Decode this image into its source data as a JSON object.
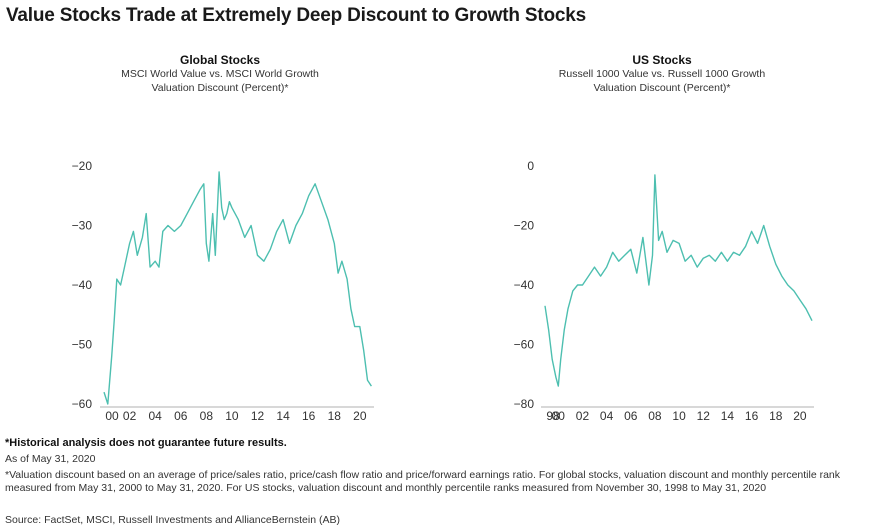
{
  "title": "Value Stocks Trade at Extremely Deep Discount to Growth Stocks",
  "series_color": "#4dbfb0",
  "charts": {
    "global": {
      "title": "Global Stocks",
      "subtitle1": "MSCI World Value vs. MSCI World Growth",
      "subtitle2": "Valuation Discount (Percent)*"
    },
    "us": {
      "title": "US Stocks",
      "subtitle1": "Russell 1000 Value vs. Russell 1000 Growth",
      "subtitle2": "Valuation Discount (Percent)*"
    }
  },
  "chart_data": [
    {
      "type": "line",
      "title": "Global Stocks",
      "ylabel": "Valuation Discount (Percent)*",
      "ylim": [
        -60,
        -20
      ],
      "yticks": [
        -20,
        -30,
        -40,
        -50,
        -60
      ],
      "xlim": [
        2000,
        2020.95
      ],
      "xticks": [
        2000,
        2002,
        2004,
        2006,
        2008,
        2010,
        2012,
        2014,
        2016,
        2018,
        2020
      ],
      "xtick_labels": [
        "00",
        "02",
        "04",
        "06",
        "08",
        "10",
        "12",
        "14",
        "16",
        "18",
        "20"
      ],
      "x": [
        2000.0,
        2000.3,
        2000.6,
        2000.8,
        2001.0,
        2001.3,
        2001.6,
        2002.0,
        2002.3,
        2002.6,
        2003.0,
        2003.3,
        2003.6,
        2004.0,
        2004.3,
        2004.6,
        2005.0,
        2005.5,
        2006.0,
        2006.5,
        2007.0,
        2007.5,
        2007.8,
        2008.0,
        2008.2,
        2008.5,
        2008.7,
        2009.0,
        2009.2,
        2009.4,
        2009.6,
        2009.8,
        2010.0,
        2010.5,
        2011.0,
        2011.5,
        2012.0,
        2012.5,
        2013.0,
        2013.5,
        2014.0,
        2014.5,
        2015.0,
        2015.5,
        2016.0,
        2016.5,
        2017.0,
        2017.5,
        2018.0,
        2018.3,
        2018.6,
        2019.0,
        2019.3,
        2019.6,
        2020.0,
        2020.3,
        2020.6,
        2020.9
      ],
      "values": [
        -58,
        -60,
        -52,
        -46,
        -39,
        -40,
        -37,
        -33,
        -31,
        -35,
        -32,
        -28,
        -37,
        -36,
        -37,
        -31,
        -30,
        -31,
        -30,
        -28,
        -26,
        -24,
        -23,
        -33,
        -36,
        -28,
        -35,
        -21,
        -27,
        -29,
        -28,
        -26,
        -27,
        -29,
        -32,
        -30,
        -35,
        -36,
        -34,
        -31,
        -29,
        -33,
        -30,
        -28,
        -25,
        -23,
        -26,
        -29,
        -33,
        -38,
        -36,
        -39,
        -44,
        -47,
        -47,
        -51,
        -56,
        -57
      ]
    },
    {
      "type": "line",
      "title": "US Stocks",
      "ylabel": "Valuation Discount (Percent)*",
      "ylim": [
        -80,
        0
      ],
      "yticks": [
        0,
        -20,
        -40,
        -60,
        -80
      ],
      "xlim": [
        1998.9,
        2021.0
      ],
      "xticks": [
        1998,
        2000,
        2002,
        2004,
        2006,
        2008,
        2010,
        2012,
        2014,
        2016,
        2018,
        2020
      ],
      "xtick_labels": [
        "98",
        "00",
        "02",
        "04",
        "06",
        "08",
        "10",
        "12",
        "14",
        "16",
        "18",
        "20"
      ],
      "x": [
        1998.9,
        1999.2,
        1999.5,
        1999.8,
        2000.0,
        2000.2,
        2000.5,
        2000.8,
        2001.2,
        2001.6,
        2002.0,
        2002.5,
        2003.0,
        2003.5,
        2004.0,
        2004.5,
        2005.0,
        2005.5,
        2006.0,
        2006.5,
        2007.0,
        2007.5,
        2007.8,
        2008.0,
        2008.3,
        2008.6,
        2009.0,
        2009.5,
        2010.0,
        2010.5,
        2011.0,
        2011.5,
        2012.0,
        2012.5,
        2013.0,
        2013.5,
        2014.0,
        2014.5,
        2015.0,
        2015.5,
        2016.0,
        2016.5,
        2017.0,
        2017.5,
        2018.0,
        2018.5,
        2019.0,
        2019.5,
        2020.0,
        2020.5,
        2021.0
      ],
      "values": [
        -47,
        -55,
        -65,
        -71,
        -74,
        -65,
        -55,
        -48,
        -42,
        -40,
        -40,
        -37,
        -34,
        -37,
        -34,
        -29,
        -32,
        -30,
        -28,
        -36,
        -24,
        -40,
        -30,
        -3,
        -25,
        -22,
        -29,
        -25,
        -26,
        -32,
        -30,
        -34,
        -31,
        -30,
        -32,
        -29,
        -32,
        -29,
        -30,
        -27,
        -22,
        -26,
        -20,
        -27,
        -33,
        -37,
        -40,
        -42,
        -45,
        -48,
        -52
      ]
    }
  ],
  "footnotes": {
    "disclaimer": "*Historical analysis does not guarantee future results.",
    "asof": "As of May 31, 2020",
    "method": "*Valuation discount based on an average of price/sales ratio, price/cash flow ratio and price/forward earnings ratio. For global stocks, valuation discount and monthly percentile rank measured from May 31, 2000 to May 31, 2020. For US stocks, valuation discount and monthly percentile ranks measured from November 30, 1998 to May 31, 2020",
    "source": "Source: FactSet, MSCI, Russell Investments and AllianceBernstein (AB)"
  }
}
